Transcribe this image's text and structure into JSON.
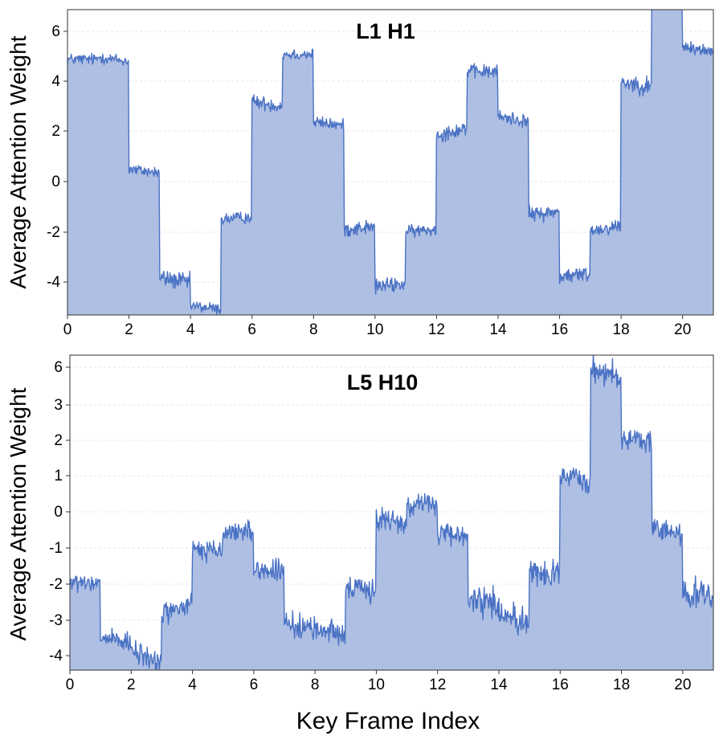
{
  "figure": {
    "xlabel": "Key Frame Index",
    "ylabel": "Average Attention Weight",
    "colors": {
      "line": "#4a72c4",
      "fill": "#aebfe3",
      "grid": "#e6e6e6",
      "axis": "#333333"
    }
  },
  "chart_data": [
    {
      "type": "area",
      "title": "L1 H1",
      "xlabel": "",
      "ylabel": "Average Attention Weight",
      "xlim": [
        0,
        21
      ],
      "ylim": [
        -5.3,
        7.0
      ],
      "xticks": [
        "0",
        "2",
        "4",
        "6",
        "8",
        "10",
        "12",
        "14",
        "16",
        "18",
        "20"
      ],
      "yticks": [
        "6",
        "4",
        "2",
        "0",
        "-2",
        "-4"
      ],
      "grid": "horizontal dashed",
      "series": [
        {
          "segment_width": 1,
          "segments": [
            {
              "mean": 5.0,
              "noise": 0.12,
              "trend": 0
            },
            {
              "mean": 5.0,
              "noise": 0.12,
              "trend": -0.2
            },
            {
              "mean": 0.5,
              "noise": 0.12,
              "trend": -0.15
            },
            {
              "mean": -3.9,
              "noise": 0.18,
              "trend": -0.2
            },
            {
              "mean": -5.0,
              "noise": 0.12,
              "trend": -0.15
            },
            {
              "mean": -1.4,
              "noise": 0.12,
              "trend": 0.1
            },
            {
              "mean": 3.2,
              "noise": 0.14,
              "trend": -0.2
            },
            {
              "mean": 5.2,
              "noise": 0.12,
              "trend": 0
            },
            {
              "mean": 2.4,
              "noise": 0.12,
              "trend": -0.15
            },
            {
              "mean": -1.8,
              "noise": 0.15,
              "trend": 0.1
            },
            {
              "mean": -4.1,
              "noise": 0.15,
              "trend": 0.1
            },
            {
              "mean": -1.9,
              "noise": 0.12,
              "trend": 0.1
            },
            {
              "mean": 2.1,
              "noise": 0.15,
              "trend": 0.3
            },
            {
              "mean": 4.5,
              "noise": 0.14,
              "trend": 0
            },
            {
              "mean": 2.6,
              "noise": 0.14,
              "trend": -0.2
            },
            {
              "mean": -1.2,
              "noise": 0.15,
              "trend": 0.1
            },
            {
              "mean": -3.7,
              "noise": 0.16,
              "trend": 0.1
            },
            {
              "mean": -1.8,
              "noise": 0.14,
              "trend": 0.2
            },
            {
              "mean": 4.0,
              "noise": 0.18,
              "trend": -0.2
            },
            {
              "mean": 7.4,
              "noise": 0.1,
              "trend": 0
            },
            {
              "mean": 5.4,
              "noise": 0.12,
              "trend": -0.2
            }
          ]
        }
      ]
    },
    {
      "type": "area",
      "title": "L5 H10",
      "xlabel": "Key Frame Index",
      "ylabel": "Average Attention Weight",
      "xlim": [
        0,
        21
      ],
      "ylim": [
        -4.4,
        6.4
      ],
      "xticks": [
        "0",
        "2",
        "4",
        "6",
        "8",
        "10",
        "12",
        "14",
        "16",
        "18",
        "20"
      ],
      "yticks": [
        "6",
        "3",
        "2",
        "1",
        "0",
        "-1",
        "-2",
        "-3",
        "-4"
      ],
      "grid": "horizontal dashed",
      "series": [
        {
          "segment_width": 1,
          "segments": [
            {
              "mean": -1.45,
              "noise": 0.14,
              "trend": -0.1
            },
            {
              "mean": -3.4,
              "noise": 0.18,
              "trend": -0.3
            },
            {
              "mean": -3.95,
              "noise": 0.2,
              "trend": -0.4
            },
            {
              "mean": -2.3,
              "noise": 0.2,
              "trend": 0.3
            },
            {
              "mean": -0.3,
              "noise": 0.18,
              "trend": -0.1
            },
            {
              "mean": 0.35,
              "noise": 0.18,
              "trend": 0.1
            },
            {
              "mean": -1.0,
              "noise": 0.18,
              "trend": -0.1
            },
            {
              "mean": -2.9,
              "noise": 0.2,
              "trend": -0.2
            },
            {
              "mean": -3.05,
              "noise": 0.2,
              "trend": -0.1
            },
            {
              "mean": -1.65,
              "noise": 0.2,
              "trend": 0
            },
            {
              "mean": 0.7,
              "noise": 0.2,
              "trend": -0.2
            },
            {
              "mean": 1.3,
              "noise": 0.2,
              "trend": 0
            },
            {
              "mean": 0.2,
              "noise": 0.18,
              "trend": -0.1
            },
            {
              "mean": -2.0,
              "noise": 0.25,
              "trend": -0.3
            },
            {
              "mean": -2.6,
              "noise": 0.25,
              "trend": -0.3
            },
            {
              "mean": -1.1,
              "noise": 0.25,
              "trend": -0.1
            },
            {
              "mean": 2.15,
              "noise": 0.18,
              "trend": -0.2
            },
            {
              "mean": 5.8,
              "noise": 0.25,
              "trend": -0.5
            },
            {
              "mean": 3.5,
              "noise": 0.18,
              "trend": -0.2
            },
            {
              "mean": 0.35,
              "noise": 0.2,
              "trend": -0.1
            },
            {
              "mean": -1.8,
              "noise": 0.3,
              "trend": -0.3
            }
          ]
        }
      ]
    }
  ]
}
